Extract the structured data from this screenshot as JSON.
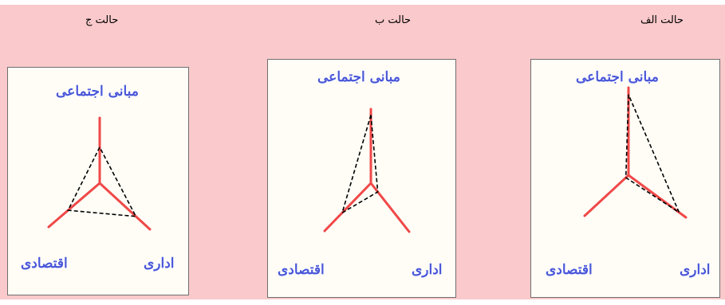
{
  "colors": {
    "background": "#f9c9cb",
    "panel": "#fffdf6",
    "axis_line": "#f04848",
    "dashed_line": "#000000",
    "label_text": "#4a57d8"
  },
  "axes": {
    "top": "مبانی اجتماعی",
    "bottom_left": "اقتصادی",
    "bottom_right": "اداری"
  },
  "cases": [
    {
      "title": "حالت الف",
      "weights": {
        "top": 0.92,
        "bottom_left": 0.06,
        "bottom_right": 0.88
      }
    },
    {
      "title": "حالت ب",
      "weights": {
        "top": 0.92,
        "bottom_left": 0.62,
        "bottom_right": 0.18
      }
    },
    {
      "title": "حالت ج",
      "weights": {
        "top": 0.55,
        "bottom_left": 0.62,
        "bottom_right": 0.72
      }
    }
  ]
}
